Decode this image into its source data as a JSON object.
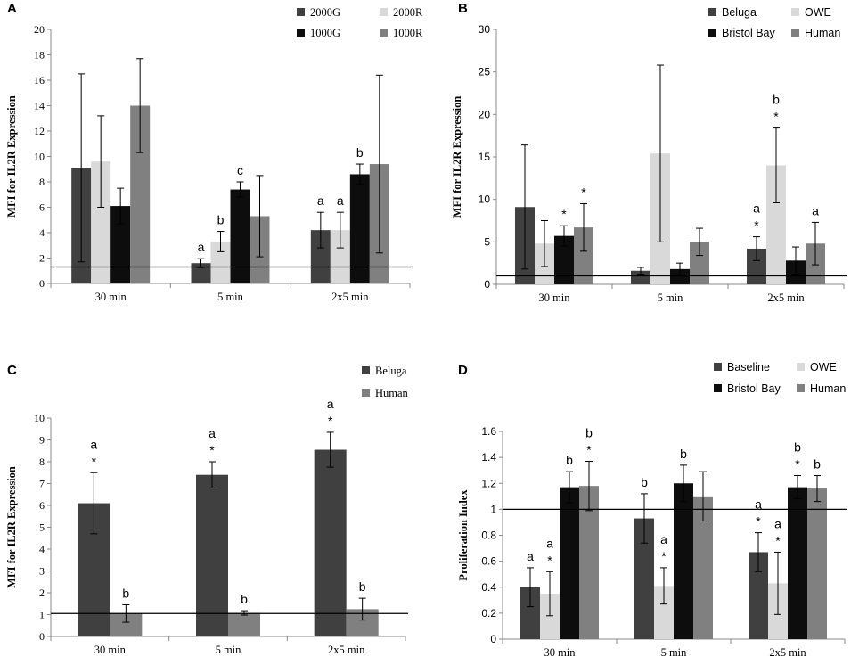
{
  "colors": {
    "dark": "#404040",
    "light": "#d9d9d9",
    "black": "#0d0d0d",
    "medium": "#808080"
  },
  "chart_data": [
    {
      "panel": "A",
      "type": "bar",
      "ylabel": "MFI for IL2R Expression",
      "ylim": [
        0,
        20
      ],
      "yticks": [
        0,
        2,
        4,
        6,
        8,
        10,
        12,
        14,
        16,
        18,
        20
      ],
      "categories": [
        "30 min",
        "5 min",
        "2x5 min"
      ],
      "reference_line": 1.3,
      "legend": {
        "placement": "top-right",
        "columns": 2
      },
      "series": [
        {
          "name": "2000G",
          "color": "dark",
          "values": [
            9.1,
            1.6,
            4.2
          ],
          "errors": [
            7.4,
            0.35,
            1.4
          ],
          "labels": [
            "",
            "a",
            "a"
          ]
        },
        {
          "name": "2000R",
          "color": "light",
          "values": [
            9.6,
            3.3,
            4.2
          ],
          "errors": [
            3.6,
            0.8,
            1.4
          ],
          "labels": [
            "",
            "b",
            "a"
          ]
        },
        {
          "name": "1000G",
          "color": "black",
          "values": [
            6.1,
            7.4,
            8.6
          ],
          "errors": [
            1.4,
            0.6,
            0.8
          ],
          "labels": [
            "",
            "c",
            "b"
          ]
        },
        {
          "name": "1000R",
          "color": "medium",
          "values": [
            14.0,
            5.3,
            9.4
          ],
          "errors": [
            3.7,
            3.2,
            7.0
          ],
          "labels": [
            "",
            "",
            ""
          ]
        }
      ]
    },
    {
      "panel": "B",
      "type": "bar",
      "ylabel": "MFI for IL2R Expression",
      "ylim": [
        0,
        30
      ],
      "yticks": [
        0,
        5,
        10,
        15,
        20,
        25,
        30
      ],
      "categories": [
        "30 min",
        "5 min",
        "2x5 min"
      ],
      "reference_line": 1.0,
      "legend": {
        "placement": "top-right",
        "columns": 2
      },
      "series": [
        {
          "name": "Beluga",
          "color": "dark",
          "values": [
            9.1,
            1.6,
            4.2
          ],
          "errors": [
            7.3,
            0.4,
            1.4
          ],
          "labels": [
            "",
            "",
            "a\n*"
          ]
        },
        {
          "name": "OWE",
          "color": "light",
          "values": [
            4.8,
            15.4,
            14.0
          ],
          "errors": [
            2.7,
            10.4,
            4.4
          ],
          "labels": [
            "",
            "",
            "b\n*"
          ]
        },
        {
          "name": "Bristol Bay",
          "color": "black",
          "values": [
            5.7,
            1.8,
            2.8
          ],
          "errors": [
            1.2,
            0.7,
            1.6
          ],
          "labels": [
            "*",
            "",
            ""
          ]
        },
        {
          "name": "Human",
          "color": "medium",
          "values": [
            6.7,
            5.0,
            4.8
          ],
          "errors": [
            2.8,
            1.6,
            2.5
          ],
          "labels": [
            "*",
            "",
            "a"
          ]
        }
      ]
    },
    {
      "panel": "C",
      "type": "bar",
      "ylabel": "MFI for IL2R Expression",
      "ylim": [
        0,
        10
      ],
      "yticks": [
        0,
        1,
        2,
        3,
        4,
        5,
        6,
        7,
        8,
        9,
        10
      ],
      "categories": [
        "30 min",
        "5 min",
        "2x5 min"
      ],
      "reference_line": 1.05,
      "legend": {
        "placement": "top-right",
        "columns": 1
      },
      "series": [
        {
          "name": "Beluga",
          "color": "dark",
          "values": [
            6.1,
            7.4,
            8.55
          ],
          "errors": [
            1.4,
            0.6,
            0.8
          ],
          "labels": [
            "a\n*",
            "a\n*",
            "a\n*"
          ]
        },
        {
          "name": "Human",
          "color": "medium",
          "values": [
            1.05,
            1.08,
            1.25
          ],
          "errors": [
            0.4,
            0.1,
            0.5
          ],
          "labels": [
            "b",
            "b",
            "b"
          ]
        }
      ]
    },
    {
      "panel": "D",
      "type": "bar",
      "ylabel": "Proliferation Index",
      "ylim": [
        0,
        1.6
      ],
      "yticks": [
        "0",
        "0.2",
        "0.4",
        "0.6",
        "0.8",
        "1",
        "1.2",
        "1.4",
        "1.6"
      ],
      "categories": [
        "30 min",
        "5 min",
        "2x5 min"
      ],
      "reference_line": 1.0,
      "legend": {
        "placement": "top-right",
        "columns": 2
      },
      "series": [
        {
          "name": "Baseline",
          "color": "dark",
          "values": [
            0.4,
            0.93,
            0.67
          ],
          "errors": [
            0.15,
            0.19,
            0.15
          ],
          "labels": [
            "a",
            "b",
            "a\n*"
          ]
        },
        {
          "name": "OWE",
          "color": "light",
          "values": [
            0.35,
            0.41,
            0.43
          ],
          "errors": [
            0.17,
            0.14,
            0.24
          ],
          "labels": [
            "a\n*",
            "a\n*",
            "a\n*"
          ]
        },
        {
          "name": "Bristol Bay",
          "color": "black",
          "values": [
            1.17,
            1.2,
            1.17
          ],
          "errors": [
            0.12,
            0.14,
            0.09
          ],
          "labels": [
            "b",
            "b",
            "b\n*"
          ]
        },
        {
          "name": "Human",
          "color": "medium",
          "values": [
            1.18,
            1.1,
            1.16
          ],
          "errors": [
            0.19,
            0.19,
            0.1
          ],
          "labels": [
            "b\n*",
            "",
            "b"
          ]
        }
      ]
    }
  ]
}
